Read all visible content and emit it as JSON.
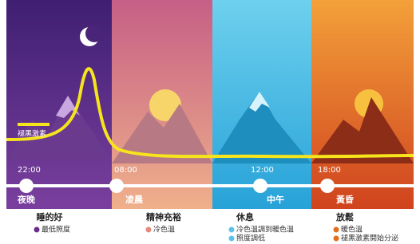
{
  "legend": {
    "label": "褪黑激素"
  },
  "timeline": [
    {
      "time": "22:00",
      "label": "夜晚"
    },
    {
      "time": "08:00",
      "label": "凌晨"
    },
    {
      "time": "12:00",
      "label": "中午"
    },
    {
      "time": "18:00",
      "label": "黃昏"
    }
  ],
  "sections": [
    {
      "title": "睡的好",
      "items": [
        "最低照度"
      ]
    },
    {
      "title": "精神充裕",
      "items": [
        "冷色溫"
      ]
    },
    {
      "title": "休息",
      "items": [
        "冷色溫調到暖色溫",
        "照度調低"
      ]
    },
    {
      "title": "放鬆",
      "items": [
        "暖色溫",
        "褪黑激素開始分泌"
      ]
    }
  ]
}
